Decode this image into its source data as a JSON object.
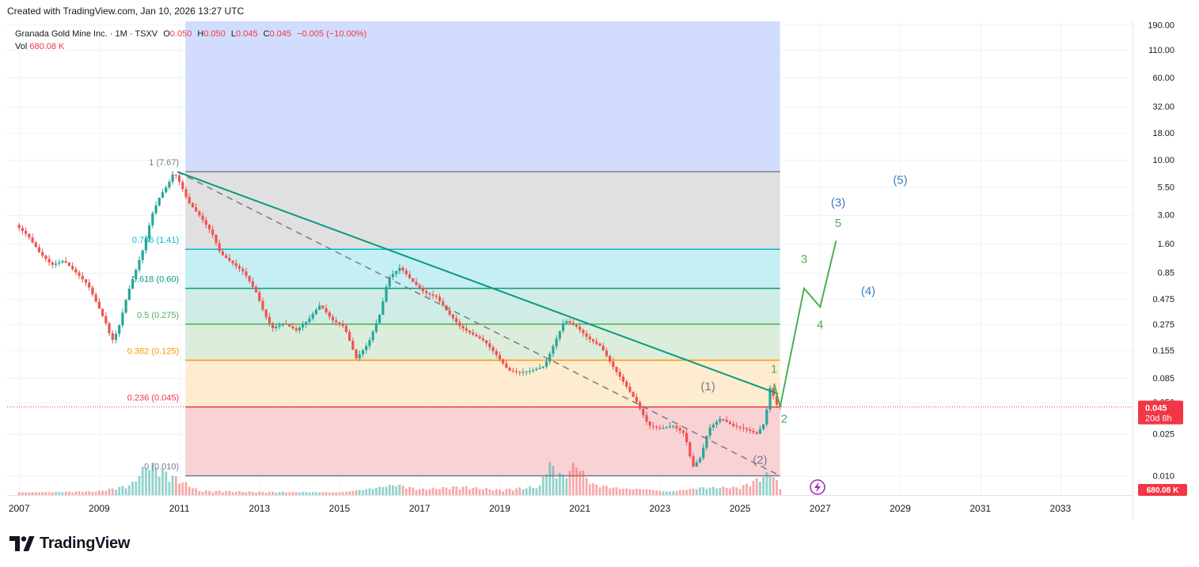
{
  "caption": "Created with TradingView.com, Jan 10, 2026 13:27 UTC",
  "legend": {
    "symbol": "Granada Gold Mine Inc. · 1M · TSXV",
    "o_label": "O",
    "o": "0.050",
    "h_label": "H",
    "h": "0.050",
    "l_label": "L",
    "l": "0.045",
    "c_label": "C",
    "c": "0.045",
    "change": "−0.005 (−10.00%)",
    "vol_label": "Vol",
    "vol": "680.08 K"
  },
  "brand": "TradingView",
  "colors": {
    "up": "#26a69a",
    "down": "#ef5350",
    "trendline": "#089981",
    "wave_green": "#4caf50",
    "wave_blue": "#2962ff",
    "price_tag": "#f23645"
  },
  "chart_data": {
    "type": "candlestick",
    "symbol": "Granada Gold Mine Inc.",
    "exchange": "TSXV",
    "interval": "1M",
    "y_scale": "log",
    "x_range": [
      2006.7,
      2034.8
    ],
    "y_range": [
      0.0068,
      205
    ],
    "x_ticks": [
      "2007",
      "2009",
      "2011",
      "2013",
      "2015",
      "2017",
      "2019",
      "2021",
      "2023",
      "2025",
      "2027",
      "2029",
      "2031",
      "2033"
    ],
    "y_ticks": [
      "190.00",
      "110.00",
      "60.00",
      "32.00",
      "18.00",
      "10.00",
      "5.50",
      "3.00",
      "1.60",
      "0.85",
      "0.475",
      "0.275",
      "0.155",
      "0.085",
      "0.050",
      "0.025",
      "0.010"
    ],
    "last_price": "0.045",
    "countdown": "20d 8h",
    "last_volume": "680.08 K",
    "price_path": [
      [
        2007.0,
        2.4
      ],
      [
        2007.3,
        1.9
      ],
      [
        2007.6,
        1.3
      ],
      [
        2007.9,
        1.0
      ],
      [
        2008.2,
        1.1
      ],
      [
        2008.5,
        0.85
      ],
      [
        2008.8,
        0.65
      ],
      [
        2009.0,
        0.45
      ],
      [
        2009.25,
        0.28
      ],
      [
        2009.4,
        0.19
      ],
      [
        2009.55,
        0.24
      ],
      [
        2009.8,
        0.55
      ],
      [
        2010.0,
        0.9
      ],
      [
        2010.2,
        1.5
      ],
      [
        2010.4,
        3.0
      ],
      [
        2010.6,
        4.5
      ],
      [
        2010.8,
        5.8
      ],
      [
        2010.95,
        7.67
      ],
      [
        2011.1,
        6.0
      ],
      [
        2011.3,
        4.0
      ],
      [
        2011.6,
        2.9
      ],
      [
        2011.9,
        2.0
      ],
      [
        2012.1,
        1.3
      ],
      [
        2012.4,
        1.05
      ],
      [
        2012.7,
        0.85
      ],
      [
        2013.0,
        0.55
      ],
      [
        2013.2,
        0.35
      ],
      [
        2013.4,
        0.25
      ],
      [
        2013.7,
        0.28
      ],
      [
        2014.0,
        0.24
      ],
      [
        2014.3,
        0.3
      ],
      [
        2014.6,
        0.42
      ],
      [
        2014.9,
        0.3
      ],
      [
        2015.2,
        0.26
      ],
      [
        2015.5,
        0.13
      ],
      [
        2015.8,
        0.18
      ],
      [
        2016.1,
        0.35
      ],
      [
        2016.3,
        0.75
      ],
      [
        2016.6,
        0.95
      ],
      [
        2016.9,
        0.7
      ],
      [
        2017.2,
        0.55
      ],
      [
        2017.5,
        0.5
      ],
      [
        2017.8,
        0.35
      ],
      [
        2018.1,
        0.26
      ],
      [
        2018.4,
        0.22
      ],
      [
        2018.7,
        0.19
      ],
      [
        2019.0,
        0.14
      ],
      [
        2019.3,
        0.1
      ],
      [
        2019.6,
        0.095
      ],
      [
        2019.9,
        0.1
      ],
      [
        2020.2,
        0.11
      ],
      [
        2020.5,
        0.2
      ],
      [
        2020.7,
        0.3
      ],
      [
        2021.0,
        0.26
      ],
      [
        2021.3,
        0.2
      ],
      [
        2021.6,
        0.17
      ],
      [
        2021.9,
        0.11
      ],
      [
        2022.2,
        0.075
      ],
      [
        2022.5,
        0.05
      ],
      [
        2022.8,
        0.03
      ],
      [
        2023.1,
        0.028
      ],
      [
        2023.4,
        0.03
      ],
      [
        2023.7,
        0.025
      ],
      [
        2023.9,
        0.012
      ],
      [
        2024.1,
        0.015
      ],
      [
        2024.3,
        0.028
      ],
      [
        2024.6,
        0.035
      ],
      [
        2024.9,
        0.03
      ],
      [
        2025.2,
        0.028
      ],
      [
        2025.5,
        0.025
      ],
      [
        2025.7,
        0.032
      ],
      [
        2025.85,
        0.075
      ],
      [
        2025.95,
        0.05
      ],
      [
        2026.05,
        0.045
      ]
    ],
    "volume_relative": [
      [
        2007.0,
        0.1
      ],
      [
        2008.0,
        0.1
      ],
      [
        2009.0,
        0.1
      ],
      [
        2009.8,
        0.25
      ],
      [
        2010.2,
        0.75
      ],
      [
        2010.5,
        0.6
      ],
      [
        2010.9,
        0.4
      ],
      [
        2011.5,
        0.1
      ],
      [
        2013.0,
        0.08
      ],
      [
        2015.0,
        0.1
      ],
      [
        2016.4,
        0.3
      ],
      [
        2017.0,
        0.15
      ],
      [
        2018.0,
        0.2
      ],
      [
        2019.0,
        0.12
      ],
      [
        2020.0,
        0.2
      ],
      [
        2020.2,
        0.78
      ],
      [
        2020.6,
        0.45
      ],
      [
        2020.9,
        0.82
      ],
      [
        2021.3,
        0.3
      ],
      [
        2022.0,
        0.2
      ],
      [
        2022.7,
        0.2
      ],
      [
        2023.2,
        0.12
      ],
      [
        2024.0,
        0.22
      ],
      [
        2025.0,
        0.2
      ],
      [
        2025.8,
        0.55
      ],
      [
        2026.0,
        0.15
      ]
    ],
    "fibonacci": [
      {
        "label": "1 (7.67)",
        "value": 7.67,
        "line": "#787b86",
        "fill": "#e0e0e0"
      },
      {
        "label": "0.786 (1.41)",
        "value": 1.41,
        "line": "#00bcd4",
        "fill": "#c5eff2"
      },
      {
        "label": "0.618 (0.60)",
        "value": 0.6,
        "line": "#089981",
        "fill": "#cfece6"
      },
      {
        "label": "0.5 (0.275)",
        "value": 0.275,
        "line": "#4caf50",
        "fill": "#dceedb"
      },
      {
        "label": "0.382 (0.125)",
        "value": 0.125,
        "line": "#ff9800",
        "fill": "#feecd1"
      },
      {
        "label": "0.236 (0.045)",
        "value": 0.045,
        "line": "#f23645",
        "fill": "#f9d2d5"
      },
      {
        "label": "0 (0.010)",
        "value": 0.01,
        "line": "#787b86",
        "fill": null
      }
    ],
    "fib_top_fill": "#d2ddfd",
    "fib_x_range": [
      2011.15,
      2026.0
    ],
    "trendline": {
      "from": [
        2010.95,
        7.67
      ],
      "to": [
        2025.95,
        0.06
      ]
    },
    "dashed_channel": {
      "from": [
        2010.95,
        7.67
      ],
      "to": [
        2026.0,
        0.01
      ]
    },
    "projection_path": [
      [
        2025.85,
        0.075
      ],
      [
        2026.0,
        0.045
      ],
      [
        2026.6,
        0.6
      ],
      [
        2027.0,
        0.4
      ],
      [
        2027.4,
        1.7
      ]
    ],
    "wave_labels": [
      {
        "text": "1",
        "x": 2025.85,
        "y": 0.095,
        "color": "#4caf50"
      },
      {
        "text": "2",
        "x": 2026.1,
        "y": 0.032,
        "color": "#4caf50"
      },
      {
        "text": "3",
        "x": 2026.6,
        "y": 1.05,
        "color": "#4caf50"
      },
      {
        "text": "4",
        "x": 2027.0,
        "y": 0.25,
        "color": "#4caf50"
      },
      {
        "text": "5",
        "x": 2027.45,
        "y": 2.3,
        "color": "#4caf50"
      },
      {
        "text": "(1)",
        "x": 2024.2,
        "y": 0.065,
        "color": "#787b86"
      },
      {
        "text": "(2)",
        "x": 2025.5,
        "y": 0.013,
        "color": "#787b86"
      },
      {
        "text": "(3)",
        "x": 2027.45,
        "y": 3.6,
        "color": "#3d7ebf"
      },
      {
        "text": "(4)",
        "x": 2028.2,
        "y": 0.52,
        "color": "#3d7ebf"
      },
      {
        "text": "(5)",
        "x": 2029.0,
        "y": 5.9,
        "color": "#3d7ebf"
      }
    ]
  }
}
